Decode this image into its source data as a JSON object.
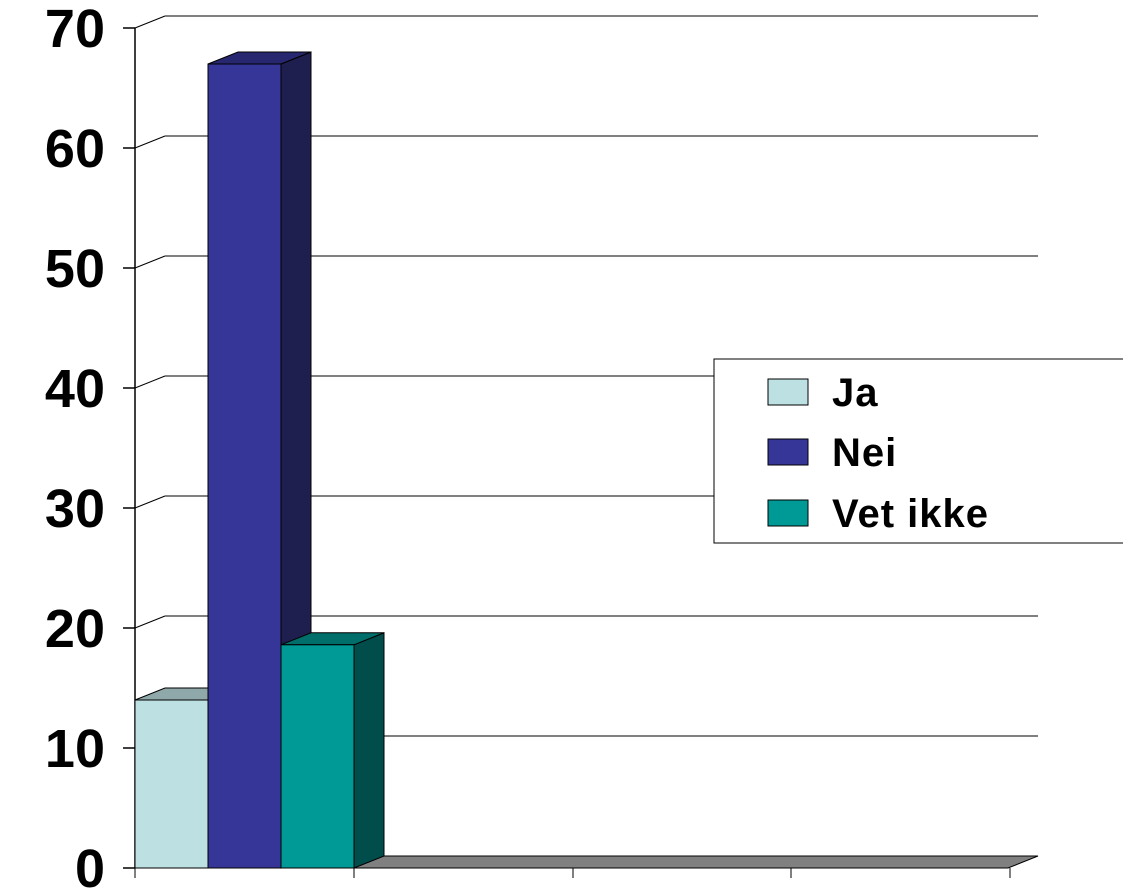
{
  "chart_data": {
    "type": "bar",
    "style": "3d-clustered-column",
    "title": "",
    "xlabel": "",
    "ylabel": "",
    "ylim": [
      0,
      70
    ],
    "yticks": [
      "0",
      "10",
      "20",
      "30",
      "40",
      "50",
      "60",
      "70"
    ],
    "grid": true,
    "legend_position": "right",
    "categories": [
      ""
    ],
    "series": [
      {
        "name": "Ja",
        "values": [
          14
        ],
        "color": "#bde1e3",
        "top_color": "#8fa9aa"
      },
      {
        "name": "Nei",
        "values": [
          67
        ],
        "color": "#363699",
        "top_color": "#272770",
        "side_color": "#1f1f4f"
      },
      {
        "name": "Vet ikke",
        "values": [
          18.6
        ],
        "color": "#009a96",
        "top_color": "#006e6b",
        "side_color": "#004d4b"
      }
    ],
    "floor_color": "#808080"
  }
}
